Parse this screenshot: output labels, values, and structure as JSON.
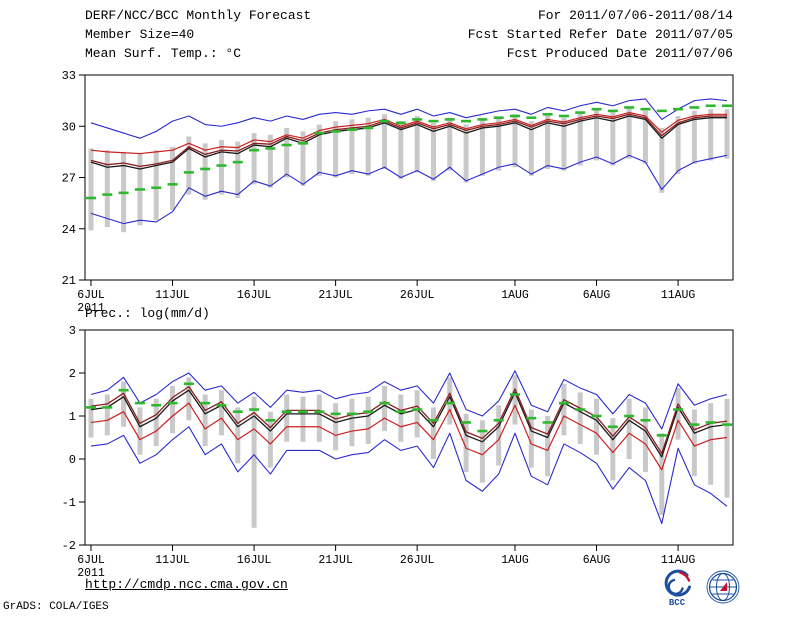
{
  "header": {
    "title": "DERF/NCC/BCC Monthly Forecast",
    "member_size": "Member Size=40",
    "forecast_range": "For 2011/07/06-2011/08/14",
    "refer_date": "Fcst Started Refer Date 2011/07/05",
    "produced_date": "Fcst Produced Date 2011/07/06"
  },
  "footer": {
    "url": "http://cmdp.ncc.cma.gov.cn",
    "attribution": "GrADS: COLA/IGES",
    "bcc_label": "BCC"
  },
  "chart_data": [
    {
      "type": "line",
      "title": "Mean Surf. Temp.: °C",
      "ylabel": "°C",
      "ylim": [
        21,
        33
      ],
      "yticks": [
        33,
        30,
        27,
        24,
        21
      ],
      "n_points": 40,
      "x_tick_positions": [
        0,
        5,
        10,
        15,
        20,
        26,
        31,
        36
      ],
      "x_tick_labels": [
        "6JUL",
        "11JUL",
        "16JUL",
        "21JUL",
        "26JUL",
        "1AUG",
        "6AUG",
        "11AUG"
      ],
      "x_year_label": "2011",
      "grid": false,
      "legend": "none",
      "bars": {
        "name": "ensemble-spread-bars",
        "color": "#c9c9c9",
        "low": [
          23.9,
          24.1,
          23.8,
          24.2,
          24.5,
          25.1,
          26.0,
          25.7,
          26.0,
          25.8,
          26.6,
          26.4,
          27.0,
          26.5,
          27.1,
          27.0,
          27.2,
          27.1,
          27.5,
          26.9,
          27.3,
          26.8,
          27.4,
          26.7,
          27.1,
          27.4,
          27.6,
          27.1,
          27.5,
          27.4,
          27.7,
          28.0,
          27.7,
          28.1,
          27.8,
          26.1,
          27.2,
          27.8,
          28.0,
          28.1
        ],
        "high": [
          28.7,
          28.6,
          28.5,
          28.4,
          28.6,
          28.8,
          29.4,
          29.0,
          29.2,
          29.1,
          29.6,
          29.5,
          29.9,
          29.7,
          30.1,
          30.3,
          30.4,
          30.5,
          30.7,
          30.3,
          30.6,
          30.2,
          30.5,
          30.1,
          30.4,
          30.5,
          30.7,
          30.3,
          30.7,
          30.5,
          30.8,
          31.0,
          30.9,
          31.1,
          30.9,
          29.9,
          30.6,
          30.9,
          31.0,
          31.0
        ]
      },
      "series": [
        {
          "name": "member-max",
          "color": "#2a2ad0",
          "style": "line",
          "width": 1.1,
          "values": [
            30.2,
            29.9,
            29.6,
            29.3,
            29.7,
            30.3,
            30.6,
            30.1,
            30.0,
            30.2,
            30.5,
            30.3,
            30.6,
            30.4,
            30.7,
            30.8,
            30.7,
            30.9,
            31.0,
            30.7,
            31.0,
            30.6,
            30.8,
            30.5,
            30.7,
            30.9,
            31.0,
            30.7,
            31.1,
            30.9,
            31.2,
            31.4,
            31.2,
            31.5,
            31.6,
            30.4,
            31.0,
            31.5,
            31.6,
            31.5
          ]
        },
        {
          "name": "member-min",
          "color": "#2a2ad0",
          "style": "line",
          "width": 1.1,
          "values": [
            24.9,
            24.6,
            24.3,
            24.5,
            24.4,
            25.0,
            26.4,
            25.9,
            26.2,
            26.0,
            26.8,
            26.5,
            27.2,
            26.6,
            27.3,
            27.1,
            27.4,
            27.2,
            27.6,
            27.0,
            27.4,
            26.9,
            27.6,
            26.8,
            27.2,
            27.6,
            27.8,
            27.2,
            27.7,
            27.5,
            27.9,
            28.2,
            27.8,
            28.3,
            27.9,
            26.3,
            27.4,
            27.9,
            28.1,
            28.3
          ]
        },
        {
          "name": "ensemble-mean-red",
          "color": "#cc2020",
          "style": "line",
          "width": 1.2,
          "values": [
            28.6,
            28.5,
            28.45,
            28.4,
            28.5,
            28.6,
            29.0,
            28.6,
            28.8,
            28.75,
            29.2,
            29.1,
            29.5,
            29.3,
            29.75,
            29.95,
            30.05,
            30.15,
            30.4,
            30.0,
            30.3,
            29.95,
            30.2,
            29.85,
            30.1,
            30.2,
            30.4,
            30.05,
            30.4,
            30.25,
            30.5,
            30.7,
            30.55,
            30.8,
            30.6,
            29.65,
            30.35,
            30.6,
            30.7,
            30.7
          ]
        },
        {
          "name": "ensemble-mean-black",
          "color": "#1a1a1a",
          "style": "line",
          "width": 1.3,
          "values": [
            27.9,
            27.6,
            27.7,
            27.5,
            27.7,
            27.9,
            28.7,
            28.2,
            28.5,
            28.4,
            28.9,
            28.8,
            29.3,
            29.0,
            29.5,
            29.7,
            29.8,
            29.9,
            30.2,
            29.8,
            30.1,
            29.7,
            30.0,
            29.6,
            29.9,
            30.0,
            30.2,
            29.8,
            30.2,
            30.0,
            30.3,
            30.5,
            30.3,
            30.6,
            30.4,
            29.3,
            30.1,
            30.4,
            30.5,
            30.5
          ]
        },
        {
          "name": "ensemble-mean-darkred",
          "color": "#8b1e1e",
          "style": "line",
          "width": 1.3,
          "values": [
            28.0,
            27.75,
            27.85,
            27.65,
            27.8,
            28.0,
            28.8,
            28.35,
            28.6,
            28.55,
            29.0,
            28.95,
            29.4,
            29.15,
            29.6,
            29.8,
            29.9,
            30.0,
            30.3,
            29.9,
            30.2,
            29.85,
            30.1,
            29.75,
            30.0,
            30.1,
            30.3,
            29.95,
            30.3,
            30.15,
            30.4,
            30.6,
            30.45,
            30.7,
            30.5,
            29.45,
            30.2,
            30.5,
            30.6,
            30.6
          ]
        },
        {
          "name": "climatology-dashes",
          "color": "#2eb82e",
          "style": "dash",
          "width": 2.6,
          "values": [
            25.8,
            26.0,
            26.1,
            26.3,
            26.4,
            26.6,
            27.3,
            27.5,
            27.7,
            27.9,
            28.6,
            28.7,
            28.9,
            29.0,
            29.6,
            29.7,
            29.8,
            29.9,
            30.3,
            30.2,
            30.4,
            30.3,
            30.4,
            30.3,
            30.4,
            30.5,
            30.6,
            30.5,
            30.7,
            30.6,
            30.8,
            31.0,
            30.9,
            31.1,
            31.0,
            30.9,
            31.0,
            31.1,
            31.2,
            31.2
          ]
        }
      ]
    },
    {
      "type": "line",
      "title": "Prec.: log(mm/d)",
      "ylabel": "log(mm/d)",
      "ylim": [
        -2,
        3
      ],
      "yticks": [
        3,
        2,
        1,
        0,
        -1,
        -2
      ],
      "n_points": 40,
      "x_tick_positions": [
        0,
        5,
        10,
        15,
        20,
        26,
        31,
        36
      ],
      "x_tick_labels": [
        "6JUL",
        "11JUL",
        "16JUL",
        "21JUL",
        "26JUL",
        "1AUG",
        "6AUG",
        "11AUG"
      ],
      "x_year_label": "2011",
      "grid": false,
      "legend": "none",
      "bars": {
        "name": "ensemble-spread-bars",
        "color": "#c9c9c9",
        "low": [
          0.5,
          0.55,
          0.75,
          0.1,
          0.3,
          0.6,
          0.9,
          0.3,
          0.55,
          -0.1,
          -1.6,
          -0.2,
          0.4,
          0.4,
          0.4,
          0.2,
          0.3,
          0.35,
          0.65,
          0.4,
          0.5,
          0.0,
          0.8,
          -0.3,
          -0.55,
          -0.15,
          0.8,
          -0.2,
          -0.4,
          0.55,
          0.35,
          0.1,
          -0.5,
          0.0,
          -0.3,
          -1.3,
          0.45,
          -0.4,
          -0.6,
          -0.9
        ],
        "high": [
          1.4,
          1.5,
          1.8,
          1.2,
          1.4,
          1.7,
          1.9,
          1.5,
          1.6,
          1.2,
          1.45,
          1.1,
          1.5,
          1.45,
          1.5,
          1.3,
          1.4,
          1.45,
          1.7,
          1.5,
          1.6,
          1.2,
          1.9,
          1.05,
          0.9,
          1.25,
          1.95,
          1.15,
          1.0,
          1.75,
          1.55,
          1.4,
          0.95,
          1.4,
          1.2,
          0.6,
          1.65,
          1.15,
          1.3,
          1.4
        ]
      },
      "series": [
        {
          "name": "member-max",
          "color": "#2a2ad0",
          "style": "line",
          "width": 1.1,
          "values": [
            1.5,
            1.6,
            1.9,
            1.3,
            1.5,
            1.8,
            2.0,
            1.6,
            1.7,
            1.3,
            1.55,
            1.2,
            1.6,
            1.55,
            1.6,
            1.4,
            1.5,
            1.55,
            1.8,
            1.6,
            1.7,
            1.3,
            2.0,
            1.15,
            1.0,
            1.35,
            2.05,
            1.25,
            1.1,
            1.85,
            1.65,
            1.5,
            1.05,
            1.5,
            1.3,
            0.7,
            1.75,
            1.25,
            1.4,
            1.5
          ]
        },
        {
          "name": "member-min",
          "color": "#2a2ad0",
          "style": "line",
          "width": 1.1,
          "values": [
            0.3,
            0.35,
            0.55,
            -0.1,
            0.1,
            0.45,
            0.75,
            0.1,
            0.35,
            -0.3,
            0.1,
            -0.35,
            0.2,
            0.2,
            0.2,
            0.0,
            0.1,
            0.15,
            0.45,
            0.2,
            0.3,
            -0.2,
            0.6,
            -0.5,
            -0.75,
            -0.35,
            0.6,
            -0.4,
            -0.6,
            0.35,
            0.15,
            -0.1,
            -0.7,
            -0.2,
            -0.5,
            -1.5,
            0.25,
            -0.6,
            -0.8,
            -1.1
          ]
        },
        {
          "name": "ensemble-mean-red",
          "color": "#cc2020",
          "style": "line",
          "width": 1.2,
          "values": [
            0.85,
            0.9,
            1.1,
            0.45,
            0.65,
            1.0,
            1.3,
            0.7,
            0.95,
            0.45,
            0.7,
            0.35,
            0.75,
            0.75,
            0.75,
            0.55,
            0.65,
            0.7,
            0.95,
            0.75,
            0.85,
            0.45,
            1.15,
            0.25,
            0.1,
            0.45,
            1.25,
            0.35,
            0.2,
            1.0,
            0.8,
            0.6,
            0.15,
            0.6,
            0.35,
            -0.25,
            0.9,
            0.3,
            0.45,
            0.5
          ]
        },
        {
          "name": "ensemble-mean-black",
          "color": "#1a1a1a",
          "style": "line",
          "width": 1.3,
          "values": [
            1.15,
            1.2,
            1.45,
            0.75,
            0.95,
            1.35,
            1.6,
            1.05,
            1.25,
            0.75,
            1.0,
            0.65,
            1.05,
            1.05,
            1.05,
            0.85,
            0.95,
            1.0,
            1.25,
            1.05,
            1.15,
            0.75,
            1.45,
            0.55,
            0.4,
            0.75,
            1.55,
            0.65,
            0.5,
            1.3,
            1.1,
            0.9,
            0.45,
            0.9,
            0.65,
            0.05,
            1.2,
            0.6,
            0.75,
            0.8
          ]
        },
        {
          "name": "ensemble-mean-darkred",
          "color": "#8b1e1e",
          "style": "line",
          "width": 1.3,
          "values": [
            1.23,
            1.28,
            1.53,
            0.83,
            1.03,
            1.43,
            1.68,
            1.13,
            1.33,
            0.83,
            1.08,
            0.73,
            1.13,
            1.13,
            1.13,
            0.93,
            1.03,
            1.08,
            1.33,
            1.13,
            1.23,
            0.83,
            1.53,
            0.63,
            0.48,
            0.83,
            1.63,
            0.73,
            0.58,
            1.38,
            1.18,
            0.98,
            0.53,
            0.98,
            0.73,
            0.13,
            1.28,
            0.68,
            0.83,
            0.88
          ]
        },
        {
          "name": "climatology-dashes",
          "color": "#2eb82e",
          "style": "dash",
          "width": 2.6,
          "values": [
            1.2,
            1.2,
            1.6,
            1.3,
            1.25,
            1.3,
            1.75,
            1.3,
            1.25,
            1.1,
            1.15,
            0.9,
            1.1,
            1.1,
            1.1,
            1.05,
            1.05,
            1.1,
            1.3,
            1.1,
            1.15,
            0.9,
            1.3,
            0.85,
            0.65,
            0.9,
            1.5,
            0.95,
            0.85,
            1.3,
            1.15,
            1.0,
            0.75,
            1.0,
            0.9,
            0.55,
            1.15,
            0.8,
            0.85,
            0.8
          ]
        }
      ]
    }
  ]
}
